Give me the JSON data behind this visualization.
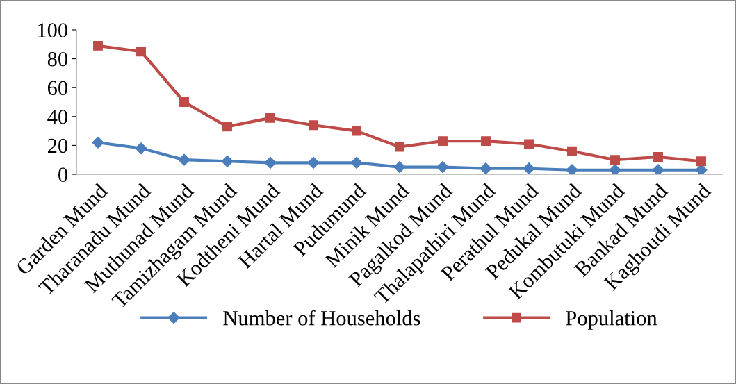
{
  "chart_data": {
    "type": "line",
    "categories": [
      "Garden Mund",
      "Tharanadu Mund",
      "Muthunad Mund",
      "Tamizhagam Mund",
      "Kodtheni Mund",
      "Hartal Mund",
      "Pudumund",
      "Minik Mund",
      "Pagalkod Mund",
      "Thalapathiri Mund",
      "Perathul Mund",
      "Pedukal Mund",
      "Kombutuki Mund",
      "Bankad Mund",
      "Kaghoudi Mund"
    ],
    "series": [
      {
        "name": "Number of Households",
        "color": "#4a7ebb",
        "marker": "diamond",
        "values": [
          22,
          18,
          10,
          9,
          8,
          8,
          8,
          5,
          5,
          4,
          4,
          3,
          3,
          3,
          3
        ]
      },
      {
        "name": "Population",
        "color": "#be4b48",
        "marker": "square",
        "values": [
          89,
          85,
          50,
          33,
          39,
          34,
          30,
          19,
          23,
          23,
          21,
          16,
          10,
          12,
          9
        ]
      }
    ],
    "ylim": [
      0,
      100
    ],
    "yticks": [
      0,
      20,
      40,
      60,
      80,
      100
    ],
    "grid": false,
    "legend": "bottom",
    "line_style": "solid"
  }
}
